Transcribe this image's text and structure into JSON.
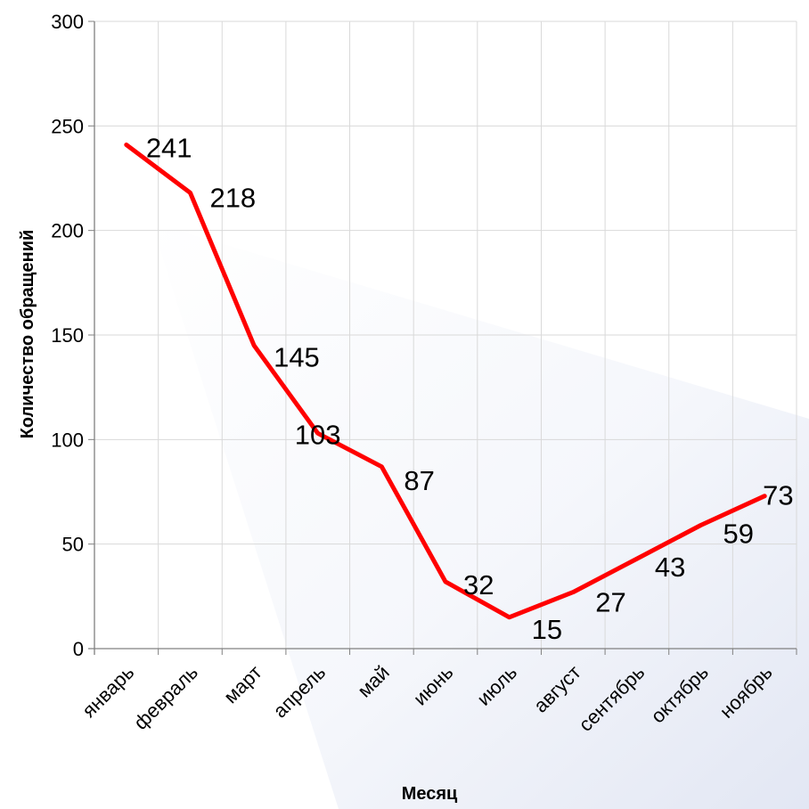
{
  "chart_data": {
    "type": "line",
    "title": "",
    "xlabel": "Месяц",
    "ylabel": "Количество обращений",
    "categories": [
      "январь",
      "февраль",
      "март",
      "апрель",
      "май",
      "июнь",
      "июль",
      "август",
      "сентябрь",
      "октябрь",
      "ноябрь"
    ],
    "series": [
      {
        "values": [
          241,
          218,
          145,
          103,
          87,
          32,
          15,
          27,
          43,
          59,
          73
        ],
        "color": "#ff0000"
      }
    ],
    "data_labels": [
      "241",
      "218",
      "145",
      "103",
      "87",
      "32",
      "15",
      "27",
      "43",
      "59",
      "73"
    ],
    "ylim": [
      0,
      300
    ],
    "yticks": [
      "0",
      "50",
      "100",
      "150",
      "200",
      "250",
      "300"
    ],
    "grid": true,
    "legend": "none",
    "colors": {
      "line": "#ff0000",
      "grid": "#d9d9d9",
      "axis": "#808080",
      "background_shade": "#e4e8f4"
    }
  }
}
